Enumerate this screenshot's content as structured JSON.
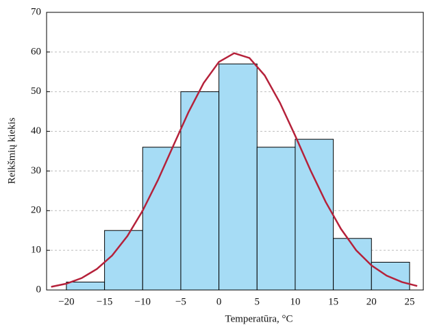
{
  "chart_data": {
    "type": "histogram",
    "xlabel": "Temperatūra, °C",
    "ylabel": "Reikšmių kiekis",
    "bins": [
      -20,
      -15,
      -10,
      -5,
      0,
      5,
      10,
      15,
      20,
      25
    ],
    "values": [
      2,
      15,
      36,
      50,
      57,
      36,
      38,
      13,
      7
    ],
    "color": "#a6dcf5",
    "curve": {
      "color": "#b5213a",
      "x": [
        -22,
        -20,
        -18,
        -16,
        -14,
        -12,
        -10,
        -8,
        -6,
        -4,
        -2,
        0,
        2,
        4,
        6,
        8,
        10,
        12,
        14,
        16,
        18,
        20,
        22,
        24,
        26
      ],
      "values": [
        0.8,
        1.6,
        3.0,
        5.3,
        8.7,
        13.6,
        20.0,
        27.7,
        36.3,
        44.8,
        52.2,
        57.5,
        59.7,
        58.5,
        54.1,
        47.2,
        38.9,
        30.2,
        22.2,
        15.4,
        10.0,
        6.2,
        3.6,
        2.0,
        1.0
      ]
    },
    "xlim": [
      -22.6,
      26.8
    ],
    "xticks": [
      {
        "value": -20,
        "label": "−20"
      },
      {
        "value": -15,
        "label": "−15"
      },
      {
        "value": -10,
        "label": "−10"
      },
      {
        "value": -5,
        "label": "−5"
      },
      0,
      5,
      10,
      15,
      20,
      25
    ],
    "ylim": [
      0,
      70
    ],
    "yticks": [
      0,
      10,
      20,
      30,
      40,
      50,
      60,
      70
    ],
    "grid": true
  }
}
